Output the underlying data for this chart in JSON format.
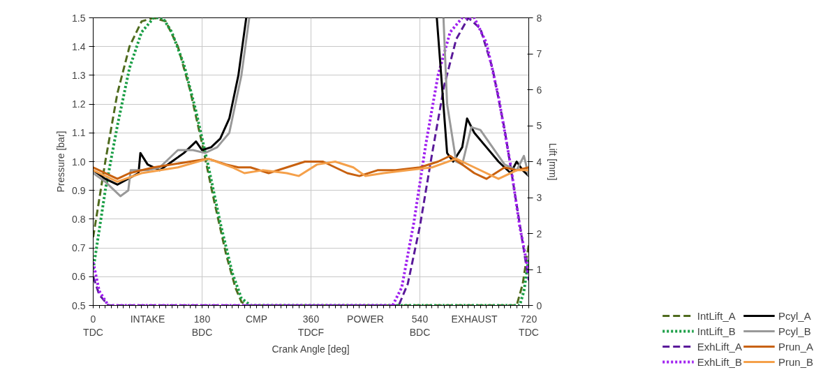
{
  "chart_data": {
    "type": "line",
    "xlabel": "Crank Angle [deg]",
    "ylabel": "Pressure [bar]",
    "y2label": "Lift [mm]",
    "xlim": [
      0,
      720
    ],
    "xticks": [
      {
        "value": 0,
        "label": "0\nTDC"
      },
      {
        "value": 90,
        "label": "INTAKE"
      },
      {
        "value": 180,
        "label": "180\nBDC"
      },
      {
        "value": 270,
        "label": "CMP"
      },
      {
        "value": 360,
        "label": "360\nTDCF"
      },
      {
        "value": 450,
        "label": "POWER"
      },
      {
        "value": 540,
        "label": "540\nBDC"
      },
      {
        "value": 630,
        "label": "EXHAUST"
      },
      {
        "value": 720,
        "label": "720\nTDC"
      }
    ],
    "ylim": [
      0.5,
      1.5
    ],
    "yticks": [
      0.5,
      0.6,
      0.7,
      0.8,
      0.9,
      {
        "value": 1.0,
        "label": "1.0"
      },
      1.1,
      1.2,
      1.3,
      1.4,
      1.5
    ],
    "y2lim": [
      0,
      8
    ],
    "y2ticks": [
      0,
      1,
      2,
      3,
      4,
      5,
      6,
      7,
      8
    ],
    "grid": true,
    "legend": "bottom right",
    "marker": "none",
    "series": [
      {
        "name": "IntLift_A",
        "color": "#4f6b1e",
        "axis": "y2",
        "line_style": "dashed",
        "x": [
          0,
          20,
          40,
          60,
          80,
          100,
          120,
          140,
          160,
          180,
          200,
          220,
          235,
          245,
          255,
          700,
          710,
          720
        ],
        "values": [
          1.9,
          4.0,
          5.9,
          7.2,
          7.9,
          8.0,
          7.9,
          7.2,
          6.0,
          4.5,
          2.9,
          1.4,
          0.5,
          0.1,
          0,
          0,
          0.6,
          1.7
        ]
      },
      {
        "name": "IntLift_B",
        "color": "#1a9e46",
        "axis": "y2",
        "line_style": "dotted",
        "x": [
          0,
          20,
          40,
          60,
          80,
          100,
          115,
          130,
          150,
          170,
          190,
          210,
          230,
          245,
          260,
          705,
          712,
          720
        ],
        "values": [
          1.0,
          3.2,
          5.0,
          6.6,
          7.6,
          8.0,
          8.0,
          7.6,
          6.7,
          5.4,
          3.9,
          2.3,
          0.9,
          0.2,
          0,
          0,
          0.4,
          1.3
        ]
      },
      {
        "name": "ExhLift_A",
        "color": "#5a1a9a",
        "axis": "y2",
        "line_style": "dashed",
        "x": [
          0,
          10,
          25,
          505,
          520,
          540,
          560,
          580,
          600,
          620,
          640,
          660,
          680,
          700,
          715,
          720
        ],
        "values": [
          0.8,
          0.3,
          0,
          0,
          0.6,
          2.2,
          4.2,
          6.1,
          7.4,
          8.0,
          7.7,
          6.6,
          4.9,
          2.8,
          1.2,
          0.7
        ]
      },
      {
        "name": "ExhLift_B",
        "color": "#a020f0",
        "axis": "y2",
        "line_style": "dotted",
        "x": [
          0,
          10,
          25,
          495,
          510,
          530,
          550,
          570,
          590,
          610,
          630,
          650,
          670,
          690,
          705,
          720
        ],
        "values": [
          1.2,
          0.4,
          0,
          0,
          0.5,
          2.3,
          4.5,
          6.4,
          7.6,
          8.0,
          8.0,
          7.3,
          5.8,
          3.9,
          2.2,
          0.9
        ]
      },
      {
        "name": "Pcyl_A",
        "color": "#000000",
        "line_style": "solid",
        "x": [
          0,
          20,
          40,
          75,
          78,
          90,
          110,
          130,
          150,
          170,
          180,
          195,
          210,
          225,
          240,
          253,
          400,
          568,
          585,
          595,
          610,
          618,
          630,
          650,
          670,
          690,
          700,
          710,
          720
        ],
        "values": [
          0.97,
          0.94,
          0.92,
          0.96,
          1.03,
          0.99,
          0.97,
          1.0,
          1.03,
          1.07,
          1.04,
          1.05,
          1.08,
          1.15,
          1.3,
          1.5,
          null,
          1.5,
          1.03,
          1.0,
          1.05,
          1.15,
          1.1,
          1.05,
          1.0,
          0.96,
          1.0,
          0.97,
          0.95
        ]
      },
      {
        "name": "Pcyl_B",
        "color": "#999999",
        "line_style": "solid",
        "x": [
          0,
          20,
          45,
          58,
          62,
          90,
          110,
          140,
          165,
          185,
          205,
          225,
          245,
          258,
          400,
          579,
          585,
          600,
          610,
          625,
          640,
          660,
          680,
          700,
          712,
          720
        ],
        "values": [
          0.96,
          0.93,
          0.88,
          0.9,
          0.97,
          0.97,
          0.98,
          1.04,
          1.04,
          1.03,
          1.05,
          1.1,
          1.3,
          1.5,
          null,
          1.5,
          1.2,
          1.0,
          0.99,
          1.12,
          1.11,
          1.05,
          0.99,
          0.97,
          1.02,
          0.95
        ]
      },
      {
        "name": "Prun_A",
        "color": "#c8610f",
        "line_style": "solid",
        "x": [
          0,
          40,
          60,
          100,
          160,
          190,
          220,
          240,
          260,
          290,
          320,
          350,
          380,
          420,
          440,
          470,
          500,
          540,
          570,
          590,
          630,
          650,
          680,
          700,
          720
        ],
        "values": [
          0.98,
          0.94,
          0.96,
          0.98,
          1.0,
          1.01,
          0.99,
          0.98,
          0.98,
          0.96,
          0.98,
          1.0,
          1.0,
          0.96,
          0.95,
          0.97,
          0.97,
          0.98,
          1.0,
          1.02,
          0.96,
          0.94,
          0.98,
          0.97,
          0.98
        ]
      },
      {
        "name": "Prun_B",
        "color": "#f5a04a",
        "line_style": "solid",
        "x": [
          0,
          40,
          80,
          140,
          190,
          230,
          250,
          280,
          320,
          340,
          370,
          400,
          430,
          450,
          480,
          520,
          560,
          600,
          630,
          660,
          670,
          700,
          720
        ],
        "values": [
          0.97,
          0.93,
          0.96,
          0.98,
          1.01,
          0.98,
          0.96,
          0.97,
          0.96,
          0.95,
          0.99,
          1.0,
          0.98,
          0.95,
          0.96,
          0.97,
          0.98,
          1.01,
          0.98,
          0.95,
          0.94,
          0.97,
          0.97
        ]
      }
    ]
  }
}
